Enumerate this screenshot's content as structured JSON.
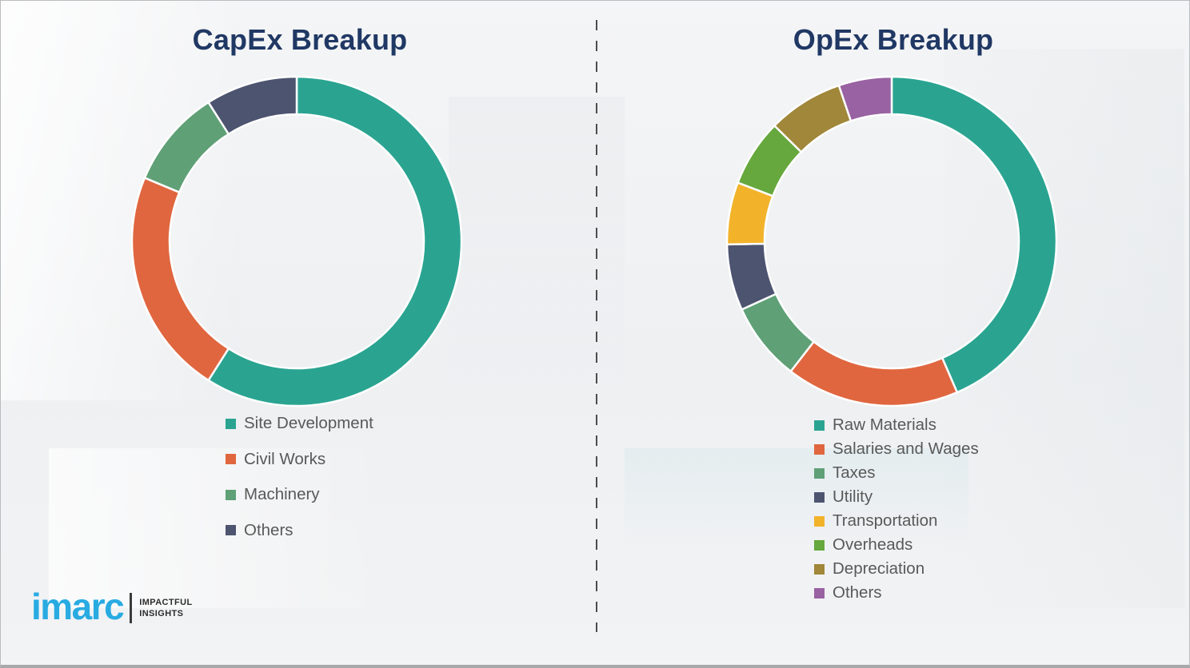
{
  "titles": {
    "capex": "CapEx Breakup",
    "opex": "OpEx Breakup"
  },
  "chart_data": [
    {
      "id": "capex",
      "type": "pie",
      "subtype": "donut",
      "title": "CapEx Breakup",
      "categories": [
        "Site Development",
        "Civil Works",
        "Machinery",
        "Others"
      ],
      "values": [
        59,
        22.3,
        9.7,
        9
      ],
      "unit": "percent",
      "colors": [
        "#2aa491",
        "#e0663f",
        "#5fa077",
        "#4d5470"
      ],
      "start_angle_deg": 0,
      "direction": "clockwise",
      "legend_position": "below-left"
    },
    {
      "id": "opex",
      "type": "pie",
      "subtype": "donut",
      "title": "OpEx Breakup",
      "categories": [
        "Raw Materials",
        "Salaries and Wages",
        "Taxes",
        "Utility",
        "Transportation",
        "Overheads",
        "Depreciation",
        "Others"
      ],
      "values": [
        43.5,
        17,
        7.7,
        6.5,
        6.1,
        6.6,
        7.4,
        5.2
      ],
      "unit": "percent",
      "colors": [
        "#2aa491",
        "#e0663f",
        "#5fa077",
        "#4d5470",
        "#f2b32b",
        "#66a83d",
        "#a08739",
        "#9962a2"
      ],
      "start_angle_deg": 0,
      "direction": "clockwise",
      "legend_position": "below-left"
    }
  ],
  "logo": {
    "brand": "imarc",
    "tagline": [
      "IMPACTFUL",
      "INSIGHTS"
    ],
    "brand_color": "#29abe2"
  },
  "colors": {
    "title_text": "#203864",
    "legend_text": "#595959",
    "divider": "#4c4c4c"
  }
}
